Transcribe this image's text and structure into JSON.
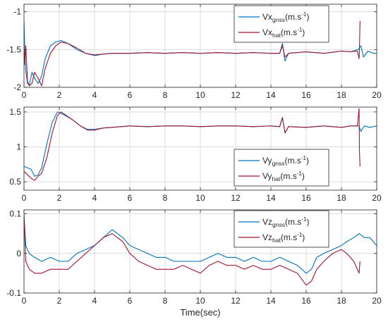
{
  "chart_data": [
    {
      "type": "line",
      "xlim": [
        0,
        20
      ],
      "ylim": [
        -2,
        -0.9
      ],
      "xticks": [
        0,
        2,
        4,
        6,
        8,
        10,
        12,
        14,
        16,
        18,
        20
      ],
      "yticks": [
        -1,
        -1.5,
        -2
      ],
      "ytick_labels": [
        "-1",
        "-1.5",
        "-2"
      ],
      "grid": true,
      "legend_position": "top-right",
      "legend": [
        {
          "base": "Vx",
          "sub": "gnss",
          "unit": "(m.s",
          "sup": "-1",
          "close": ")"
        },
        {
          "base": "Vx",
          "sub": "hat",
          "unit": "(m.s",
          "sup": "-1",
          "close": ")"
        }
      ],
      "series": [
        {
          "name": "Vx_gnss (m.s^-1)",
          "color": "#0072BD",
          "x": [
            0,
            0.05,
            0.1,
            0.2,
            0.3,
            0.45,
            0.6,
            0.8,
            1.0,
            1.2,
            1.5,
            1.8,
            2.1,
            2.5,
            3.0,
            3.5,
            4.0,
            4.5,
            5.0,
            6.0,
            7.0,
            8.0,
            9.0,
            10.0,
            11.0,
            12.0,
            13.0,
            14.0,
            14.5,
            14.65,
            14.8,
            15.0,
            16.0,
            17.0,
            18.0,
            18.5,
            18.95,
            19.1,
            19.25,
            19.5,
            19.8,
            20.0
          ],
          "y": [
            -1.12,
            -1.6,
            -1.78,
            -1.95,
            -1.97,
            -1.8,
            -1.88,
            -1.95,
            -1.85,
            -1.62,
            -1.45,
            -1.4,
            -1.38,
            -1.42,
            -1.5,
            -1.55,
            -1.58,
            -1.56,
            -1.55,
            -1.55,
            -1.54,
            -1.55,
            -1.54,
            -1.55,
            -1.54,
            -1.55,
            -1.54,
            -1.55,
            -1.55,
            -1.42,
            -1.65,
            -1.55,
            -1.53,
            -1.55,
            -1.52,
            -1.53,
            -1.5,
            -1.45,
            -1.6,
            -1.52,
            -1.55,
            -1.55
          ]
        },
        {
          "name": "Vx_hat (m.s^-1)",
          "color": "#A2142F",
          "x": [
            0,
            0.05,
            0.1,
            0.2,
            0.3,
            0.45,
            0.6,
            0.8,
            1.0,
            1.2,
            1.5,
            1.8,
            2.1,
            2.5,
            3.0,
            3.5,
            4.0,
            4.5,
            5.0,
            6.0,
            7.0,
            8.0,
            9.0,
            10.0,
            11.0,
            12.0,
            13.0,
            14.0,
            14.5,
            14.65,
            14.8,
            15.0,
            16.0,
            17.0,
            18.0,
            18.5,
            18.9,
            19.0,
            19.02,
            19.05
          ],
          "y": [
            -1.5,
            -1.7,
            -1.45,
            -1.92,
            -1.98,
            -1.95,
            -1.8,
            -1.88,
            -1.98,
            -1.75,
            -1.55,
            -1.45,
            -1.4,
            -1.42,
            -1.48,
            -1.55,
            -1.57,
            -1.56,
            -1.55,
            -1.55,
            -1.54,
            -1.55,
            -1.54,
            -1.55,
            -1.54,
            -1.55,
            -1.54,
            -1.55,
            -1.55,
            -1.45,
            -1.6,
            -1.55,
            -1.53,
            -1.55,
            -1.52,
            -1.53,
            -1.52,
            -1.62,
            -1.5,
            -1.12
          ]
        }
      ]
    },
    {
      "type": "line",
      "xlim": [
        0,
        20
      ],
      "ylim": [
        0.38,
        1.57
      ],
      "xticks": [
        0,
        2,
        4,
        6,
        8,
        10,
        12,
        14,
        16,
        18,
        20
      ],
      "yticks": [
        1.5,
        1,
        0.5
      ],
      "ytick_labels": [
        "1.5",
        "1",
        "0.5"
      ],
      "grid": true,
      "legend_position": "bottom-right",
      "legend": [
        {
          "base": "Vy",
          "sub": "gnss",
          "unit": "(m.s",
          "sup": "-1",
          "close": ")"
        },
        {
          "base": "Vy",
          "sub": "hat",
          "unit": "(m.s",
          "sup": "-1",
          "close": ")"
        }
      ],
      "series": [
        {
          "name": "Vy_gnss (m.s^-1)",
          "color": "#0072BD",
          "x": [
            0,
            0.2,
            0.4,
            0.6,
            0.8,
            1.0,
            1.3,
            1.6,
            1.9,
            2.1,
            2.4,
            2.8,
            3.2,
            3.6,
            4.0,
            4.5,
            5.0,
            6.0,
            7.0,
            8.0,
            9.0,
            10.0,
            11.0,
            12.0,
            13.0,
            14.0,
            14.5,
            14.65,
            14.8,
            15.0,
            16.0,
            17.0,
            18.0,
            18.5,
            19.0,
            19.1,
            19.3,
            19.6,
            20.0
          ],
          "y": [
            0.72,
            0.7,
            0.68,
            0.58,
            0.6,
            0.7,
            1.05,
            1.35,
            1.5,
            1.48,
            1.44,
            1.38,
            1.3,
            1.25,
            1.25,
            1.27,
            1.28,
            1.3,
            1.29,
            1.3,
            1.3,
            1.29,
            1.3,
            1.3,
            1.29,
            1.3,
            1.29,
            1.42,
            1.2,
            1.29,
            1.28,
            1.3,
            1.28,
            1.3,
            1.3,
            1.22,
            1.3,
            1.28,
            1.3
          ]
        },
        {
          "name": "Vy_hat (m.s^-1)",
          "color": "#A2142F",
          "x": [
            0,
            0.2,
            0.4,
            0.6,
            0.8,
            1.0,
            1.3,
            1.6,
            1.9,
            2.1,
            2.4,
            2.8,
            3.2,
            3.6,
            4.0,
            4.5,
            5.0,
            6.0,
            7.0,
            8.0,
            9.0,
            10.0,
            11.0,
            12.0,
            13.0,
            14.0,
            14.5,
            14.65,
            14.8,
            15.0,
            16.0,
            17.0,
            18.0,
            18.5,
            18.9,
            19.0,
            19.02,
            19.05
          ],
          "y": [
            0.65,
            0.6,
            0.55,
            0.52,
            0.58,
            0.62,
            0.85,
            1.2,
            1.45,
            1.5,
            1.45,
            1.38,
            1.3,
            1.24,
            1.24,
            1.27,
            1.28,
            1.3,
            1.29,
            1.3,
            1.3,
            1.29,
            1.3,
            1.3,
            1.29,
            1.3,
            1.29,
            1.42,
            1.2,
            1.29,
            1.28,
            1.3,
            1.28,
            1.3,
            1.3,
            1.55,
            0.95,
            0.72
          ]
        }
      ]
    },
    {
      "type": "line",
      "xlim": [
        0,
        20
      ],
      "ylim": [
        -0.1,
        0.11
      ],
      "xticks": [
        0,
        2,
        4,
        6,
        8,
        10,
        12,
        14,
        16,
        18,
        20
      ],
      "yticks": [
        0.1,
        0,
        -0.1
      ],
      "ytick_labels": [
        "0.1",
        "0",
        "-0.1"
      ],
      "grid": true,
      "legend_position": "top-right",
      "xlabel": "Time(sec)",
      "legend": [
        {
          "base": "Vz",
          "sub": "gnss",
          "unit": "(m.s",
          "sup": "-1",
          "close": ")"
        },
        {
          "base": "Vz",
          "sub": "hat",
          "unit": "(m.s",
          "sup": "-1",
          "close": ")"
        }
      ],
      "series": [
        {
          "name": "Vz_gnss (m.s^-1)",
          "color": "#0072BD",
          "x": [
            0,
            0.1,
            0.3,
            0.6,
            1.0,
            1.5,
            2.0,
            2.5,
            3.0,
            3.5,
            4.0,
            4.5,
            5.0,
            5.3,
            5.6,
            6.0,
            6.5,
            7.0,
            7.5,
            8.0,
            8.5,
            9.0,
            9.5,
            10.0,
            10.5,
            11.0,
            11.5,
            12.0,
            12.5,
            13.0,
            13.5,
            14.0,
            14.5,
            15.0,
            15.5,
            16.0,
            16.3,
            16.6,
            17.0,
            17.5,
            18.0,
            18.3,
            18.7,
            19.0,
            19.3,
            19.6,
            20.0
          ],
          "y": [
            0.1,
            0.02,
            0.0,
            -0.01,
            -0.02,
            -0.01,
            -0.02,
            -0.02,
            0.0,
            0.01,
            0.02,
            0.04,
            0.06,
            0.05,
            0.04,
            0.02,
            0.01,
            0.0,
            -0.01,
            -0.01,
            -0.02,
            -0.02,
            -0.02,
            -0.02,
            -0.01,
            0.0,
            -0.01,
            -0.01,
            -0.02,
            -0.01,
            -0.02,
            -0.02,
            -0.01,
            -0.02,
            -0.03,
            -0.05,
            -0.04,
            -0.01,
            0.0,
            0.01,
            0.02,
            0.03,
            0.04,
            0.05,
            0.04,
            0.04,
            0.02
          ]
        },
        {
          "name": "Vz_hat (m.s^-1)",
          "color": "#A2142F",
          "x": [
            0,
            0.1,
            0.3,
            0.6,
            1.0,
            1.5,
            2.0,
            2.5,
            3.0,
            3.5,
            4.0,
            4.5,
            5.0,
            5.3,
            5.6,
            6.0,
            6.5,
            7.0,
            7.5,
            8.0,
            8.5,
            9.0,
            9.5,
            10.0,
            10.5,
            11.0,
            11.5,
            12.0,
            12.5,
            13.0,
            13.5,
            14.0,
            14.5,
            15.0,
            15.5,
            16.0,
            16.3,
            16.6,
            17.0,
            17.5,
            18.0,
            18.3,
            18.7,
            19.0,
            19.05
          ],
          "y": [
            0.09,
            -0.02,
            -0.04,
            -0.05,
            -0.05,
            -0.04,
            -0.04,
            -0.04,
            -0.02,
            0.0,
            0.02,
            0.04,
            0.05,
            0.04,
            0.03,
            0.0,
            -0.02,
            -0.03,
            -0.04,
            -0.04,
            -0.04,
            -0.03,
            -0.04,
            -0.05,
            -0.03,
            -0.02,
            -0.03,
            -0.03,
            -0.04,
            -0.03,
            -0.04,
            -0.04,
            -0.03,
            -0.04,
            -0.05,
            -0.08,
            -0.07,
            -0.04,
            -0.02,
            0.0,
            0.01,
            0.0,
            -0.02,
            -0.05,
            -0.02
          ]
        }
      ]
    }
  ]
}
